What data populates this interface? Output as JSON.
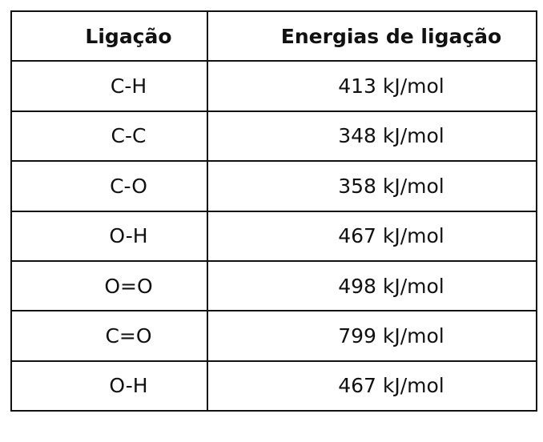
{
  "table": {
    "header": [
      "Ligação",
      "Energias de ligação"
    ],
    "rows": [
      [
        "C-H",
        "413 kJ/mol"
      ],
      [
        "C-C",
        "348 kJ/mol"
      ],
      [
        "C-O",
        "358 kJ/mol"
      ],
      [
        "O-H",
        "467 kJ/mol"
      ],
      [
        "O=O",
        "498 kJ/mol"
      ],
      [
        "C=O",
        "799 kJ/mol"
      ],
      [
        "O-H",
        "467 kJ/mol"
      ]
    ]
  }
}
